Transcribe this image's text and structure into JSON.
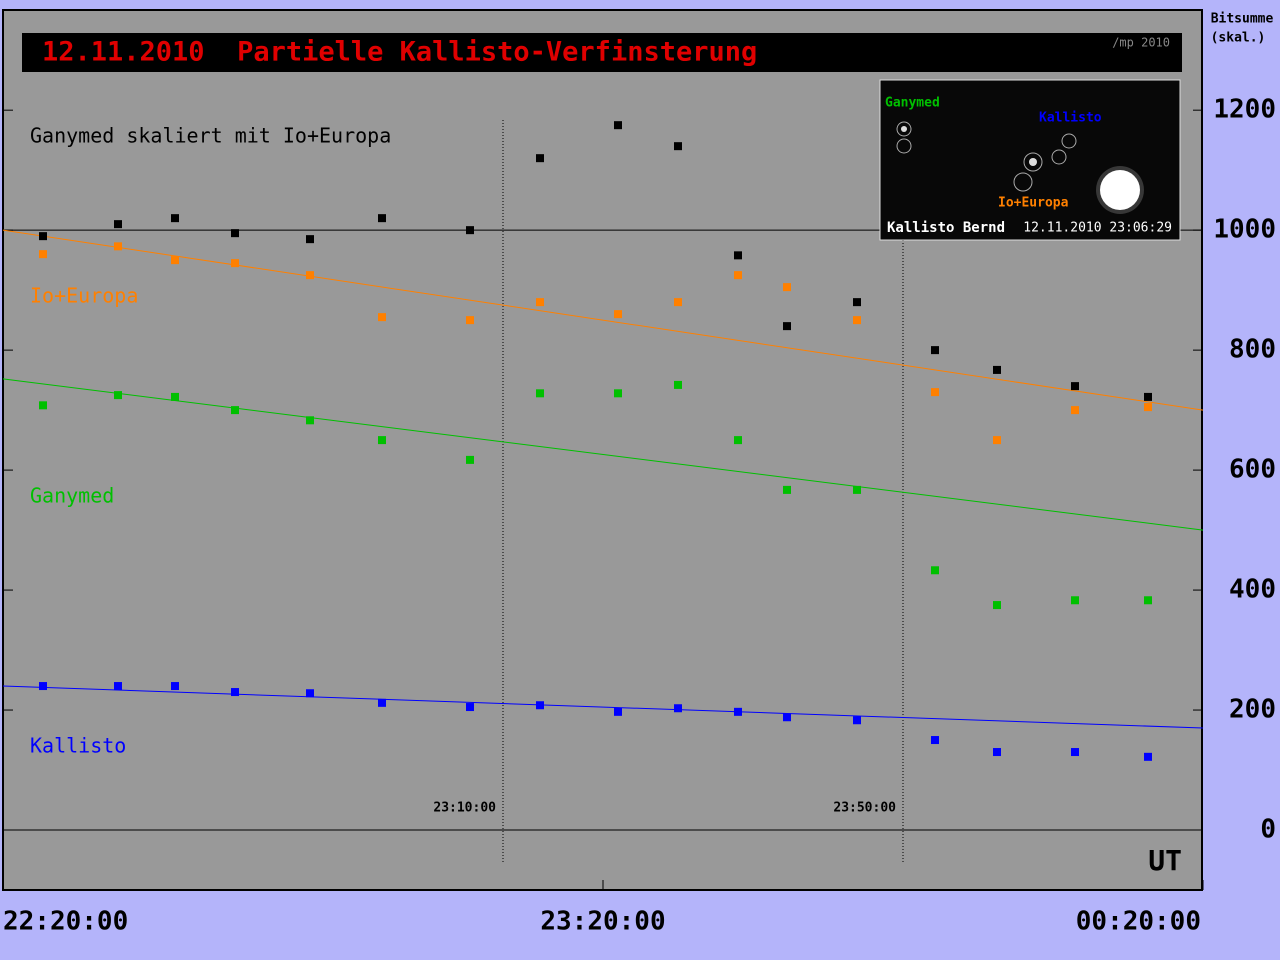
{
  "chart_data": {
    "type": "scatter",
    "title": "12.11.2010  Partielle Kallisto-Verfinsterung",
    "credit": "/mp 2010",
    "y_label": [
      "Bitsumme",
      "(skal.)"
    ],
    "x_label": "UT",
    "xlim": [
      0,
      120
    ],
    "ylim": [
      -100,
      1367
    ],
    "xticks": [
      {
        "value": 0,
        "label": "22:20:00"
      },
      {
        "value": 60,
        "label": "23:20:00"
      },
      {
        "value": 120,
        "label": "00:20:00"
      }
    ],
    "yticks": [
      0,
      200,
      400,
      600,
      800,
      1000,
      1200
    ],
    "markers": [
      {
        "value": 50,
        "label": "23:10:00"
      },
      {
        "value": 90,
        "label": "23:50:00"
      }
    ],
    "reference_line": 1000,
    "series": [
      {
        "name": "Ganymed skaliert mit Io+Europa",
        "color": "#000000",
        "x": [
          4,
          11.5,
          17.2,
          23.2,
          30.7,
          37.9,
          46.7,
          53.7,
          61.5,
          67.5,
          73.5,
          78.4,
          85.4,
          93.2,
          99.4,
          107.2,
          114.5
        ],
        "values": [
          990,
          1010,
          1020,
          995,
          985,
          1020,
          1000,
          1120,
          1175,
          1140,
          958,
          840,
          880,
          800,
          767,
          740,
          722
        ]
      },
      {
        "name": "Io+Europa",
        "color": "#ff8000",
        "x": [
          4,
          11.5,
          17.2,
          23.2,
          30.7,
          37.9,
          46.7,
          53.7,
          61.5,
          67.5,
          73.5,
          78.4,
          85.4,
          93.2,
          99.4,
          107.2,
          114.5
        ],
        "values": [
          960,
          973,
          950,
          945,
          925,
          855,
          850,
          880,
          860,
          880,
          925,
          905,
          850,
          730,
          650,
          700,
          705
        ]
      },
      {
        "name": "Ganymed",
        "color": "#00c000",
        "x": [
          4,
          11.5,
          17.2,
          23.2,
          30.7,
          37.9,
          46.7,
          53.7,
          61.5,
          67.5,
          73.5,
          78.4,
          85.4,
          93.2,
          99.4,
          107.2,
          114.5
        ],
        "values": [
          708,
          725,
          722,
          700,
          683,
          650,
          617,
          728,
          728,
          742,
          650,
          567,
          567,
          433,
          375,
          383,
          383
        ]
      },
      {
        "name": "Kallisto",
        "color": "#0000ff",
        "x": [
          4,
          11.5,
          17.2,
          23.2,
          30.7,
          37.9,
          46.7,
          53.7,
          61.5,
          67.5,
          73.5,
          78.4,
          85.4,
          93.2,
          99.4,
          107.2,
          114.5
        ],
        "values": [
          240,
          240,
          240,
          230,
          228,
          212,
          205,
          208,
          197,
          203,
          197,
          188,
          183,
          150,
          130,
          130,
          122
        ]
      }
    ],
    "trend_lines": [
      {
        "color": "#ff8000",
        "x": [
          0,
          120
        ],
        "values": [
          1000,
          700
        ]
      },
      {
        "color": "#00c000",
        "x": [
          0,
          120
        ],
        "values": [
          752,
          500
        ]
      },
      {
        "color": "#0000ff",
        "x": [
          0,
          120
        ],
        "values": [
          240,
          170
        ]
      }
    ],
    "inset": {
      "labels": [
        "Ganymed",
        "Kallisto",
        "Io+Europa"
      ],
      "caption_left": "Kallisto Bernd",
      "caption_right": "12.11.2010 23:06:29"
    }
  }
}
